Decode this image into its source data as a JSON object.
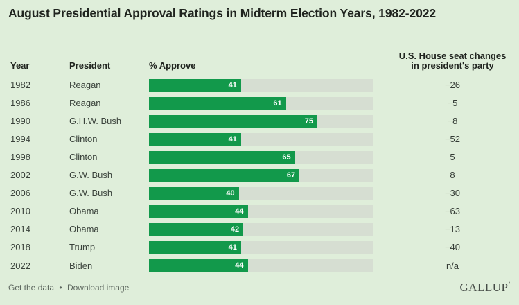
{
  "title": "August Presidential Approval Ratings in Midterm Election Years, 1982-2022",
  "header": {
    "year": "Year",
    "president": "President",
    "approve": "% Approve",
    "seats_line1": "U.S. House seat changes",
    "seats_line2": "in president's party"
  },
  "chart_data": {
    "type": "bar",
    "orientation": "horizontal",
    "title": "August Presidential Approval Ratings in Midterm Election Years, 1982-2022",
    "value_label": "% Approve",
    "xlim": [
      0,
      100
    ],
    "grid": false,
    "categories": [
      "1982",
      "1986",
      "1990",
      "1994",
      "1998",
      "2002",
      "2006",
      "2010",
      "2014",
      "2018",
      "2022"
    ],
    "values": [
      41,
      61,
      75,
      41,
      65,
      67,
      40,
      44,
      42,
      41,
      44
    ],
    "rows": [
      {
        "year": "1982",
        "president": "Reagan",
        "approve": 41,
        "seat_change": "−26"
      },
      {
        "year": "1986",
        "president": "Reagan",
        "approve": 61,
        "seat_change": "−5"
      },
      {
        "year": "1990",
        "president": "G.H.W. Bush",
        "approve": 75,
        "seat_change": "−8"
      },
      {
        "year": "1994",
        "president": "Clinton",
        "approve": 41,
        "seat_change": "−52"
      },
      {
        "year": "1998",
        "president": "Clinton",
        "approve": 65,
        "seat_change": "5"
      },
      {
        "year": "2002",
        "president": "G.W. Bush",
        "approve": 67,
        "seat_change": "8"
      },
      {
        "year": "2006",
        "president": "G.W. Bush",
        "approve": 40,
        "seat_change": "−30"
      },
      {
        "year": "2010",
        "president": "Obama",
        "approve": 44,
        "seat_change": "−63"
      },
      {
        "year": "2014",
        "president": "Obama",
        "approve": 42,
        "seat_change": "−13"
      },
      {
        "year": "2018",
        "president": "Trump",
        "approve": 41,
        "seat_change": "−40"
      },
      {
        "year": "2022",
        "president": "Biden",
        "approve": 44,
        "seat_change": "n/a"
      }
    ]
  },
  "footer": {
    "get_data": "Get the data",
    "bullet": "•",
    "download": "Download image",
    "logo": "GALLUP",
    "logo_mark": "’"
  },
  "colors": {
    "background": "#dfeeda",
    "bar": "#12994b",
    "track": "#d6ded2"
  }
}
